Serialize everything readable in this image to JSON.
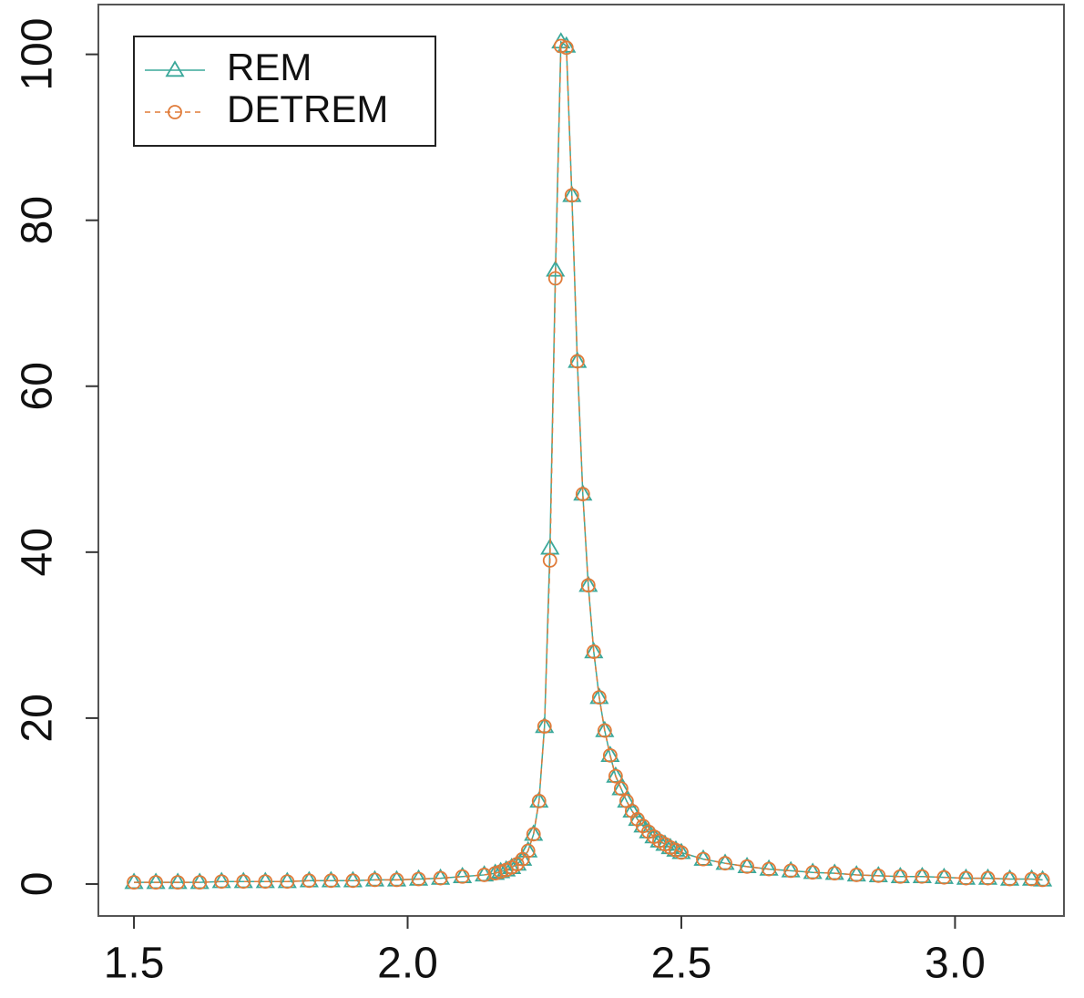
{
  "chart_data": {
    "type": "line",
    "x": [
      1.5,
      1.54,
      1.58,
      1.62,
      1.66,
      1.7,
      1.74,
      1.78,
      1.82,
      1.86,
      1.9,
      1.94,
      1.98,
      2.02,
      2.06,
      2.1,
      2.14,
      2.16,
      2.17,
      2.18,
      2.19,
      2.2,
      2.21,
      2.22,
      2.23,
      2.24,
      2.25,
      2.26,
      2.27,
      2.28,
      2.29,
      2.3,
      2.31,
      2.32,
      2.33,
      2.34,
      2.35,
      2.36,
      2.37,
      2.38,
      2.39,
      2.4,
      2.41,
      2.42,
      2.43,
      2.44,
      2.45,
      2.46,
      2.47,
      2.48,
      2.49,
      2.5,
      2.54,
      2.58,
      2.62,
      2.66,
      2.7,
      2.74,
      2.78,
      2.82,
      2.86,
      2.9,
      2.94,
      2.98,
      3.02,
      3.06,
      3.1,
      3.14,
      3.16
    ],
    "series": [
      {
        "name": "REM",
        "color": "#3aa89a",
        "marker": "triangle",
        "dashed": false,
        "values": [
          0.2,
          0.2,
          0.2,
          0.2,
          0.3,
          0.3,
          0.3,
          0.3,
          0.4,
          0.4,
          0.4,
          0.5,
          0.5,
          0.6,
          0.7,
          0.9,
          1.1,
          1.3,
          1.5,
          1.7,
          2.0,
          2.4,
          3.0,
          4.0,
          6,
          10,
          19,
          40.5,
          74,
          101.5,
          101,
          83,
          63,
          47,
          36,
          28,
          22.5,
          18.5,
          15.5,
          13,
          11.5,
          10,
          8.8,
          7.8,
          7,
          6.3,
          5.7,
          5.2,
          4.8,
          4.4,
          4.1,
          3.8,
          3.0,
          2.5,
          2.1,
          1.8,
          1.6,
          1.4,
          1.3,
          1.1,
          1.0,
          0.9,
          0.9,
          0.8,
          0.7,
          0.7,
          0.6,
          0.6,
          0.5
        ]
      },
      {
        "name": "DETREM",
        "color": "#e07b39",
        "marker": "circle",
        "dashed": true,
        "values": [
          0.2,
          0.2,
          0.2,
          0.2,
          0.3,
          0.3,
          0.3,
          0.3,
          0.4,
          0.4,
          0.4,
          0.5,
          0.5,
          0.6,
          0.7,
          0.9,
          1.1,
          1.3,
          1.5,
          1.7,
          2.0,
          2.4,
          3.0,
          4.0,
          6,
          10,
          19,
          39,
          73,
          101,
          100.8,
          83,
          63,
          47,
          36,
          28,
          22.5,
          18.5,
          15.5,
          13,
          11.5,
          10,
          8.8,
          7.8,
          7,
          6.3,
          5.7,
          5.2,
          4.8,
          4.4,
          4.1,
          3.8,
          3.0,
          2.5,
          2.1,
          1.8,
          1.6,
          1.4,
          1.3,
          1.1,
          1.0,
          0.9,
          0.9,
          0.8,
          0.7,
          0.7,
          0.6,
          0.6,
          0.5
        ]
      }
    ],
    "xlim": [
      1.435,
      3.199
    ],
    "ylim": [
      -3.85,
      106
    ],
    "xticks": [
      1.5,
      {
        "value": 2,
        "label": "2.0"
      },
      {
        "value": 2.5,
        "label": "2.5"
      },
      {
        "value": 3,
        "label": "3.0"
      }
    ],
    "yticks": [
      0,
      20,
      40,
      60,
      80,
      100
    ],
    "legend": "top-left",
    "grid": false
  }
}
